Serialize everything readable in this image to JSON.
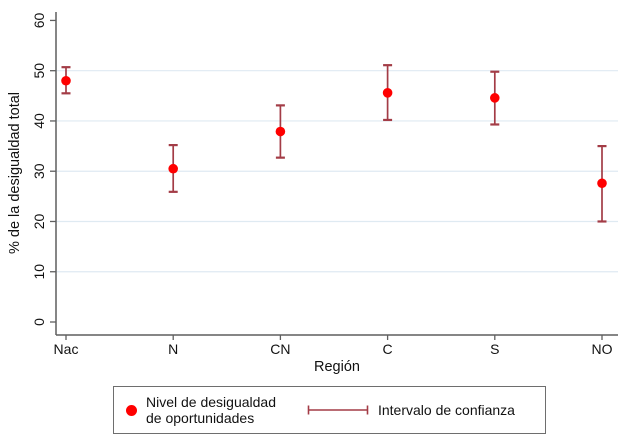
{
  "figure": {
    "legend": {
      "series1_line1": "Nivel de desigualdad",
      "series1_line2": "de oportunidades",
      "series2": "Intervalo de confianza"
    }
  },
  "chart_data": {
    "type": "scatter",
    "subtype": "point-estimates-with-confidence-intervals",
    "title": "",
    "xlabel": "Región",
    "ylabel": "% de la desigualdad total",
    "categories": [
      "Nac",
      "N",
      "CN",
      "C",
      "S",
      "NO"
    ],
    "estimates": [
      48.0,
      30.5,
      37.9,
      45.6,
      44.6,
      27.6
    ],
    "ci_low": [
      45.5,
      25.9,
      32.7,
      40.2,
      39.3,
      20.0
    ],
    "ci_high": [
      50.7,
      35.2,
      43.1,
      51.1,
      49.8,
      35.0
    ],
    "series": [
      {
        "name": "Nivel de desigualdad de oportunidades",
        "marker": "filled-circle"
      },
      {
        "name": "Intervalo de confianza",
        "marker": "capped-error-bar"
      }
    ],
    "ylim": [
      0,
      60
    ],
    "yticks": [
      0,
      10,
      20,
      30,
      40,
      50,
      60
    ],
    "ytick_labels_rotated": true,
    "grid": "horizontal gridlines at 10,20,30,40,50",
    "legend_position": "bottom-center-boxed",
    "colors": {
      "point": "#ff0000",
      "ci": "#a33c46",
      "grid": "#dfeaf2",
      "axis": "#5f5f5f",
      "text": "#111111",
      "legend_border": "#6e6e6e",
      "background": "#ffffff"
    }
  }
}
